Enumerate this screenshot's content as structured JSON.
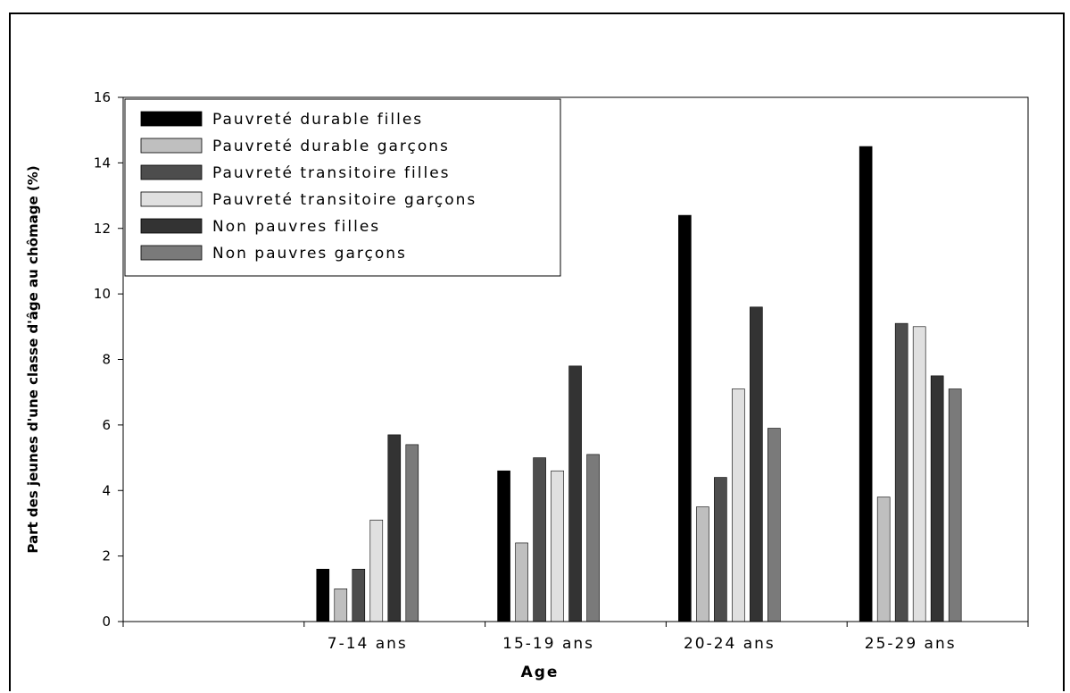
{
  "chart_data": {
    "type": "bar",
    "title": "",
    "xlabel": "Age",
    "ylabel": "Part des jeunes d'une classe d'âge au chômage (%)",
    "ylim": [
      0,
      16
    ],
    "yticks": [
      "0",
      "2",
      "4",
      "6",
      "8",
      "10",
      "12",
      "14",
      "16"
    ],
    "categories": [
      "7-14 ans",
      "15-19 ans",
      "20-24 ans",
      "25-29 ans"
    ],
    "legend_position": "top-left",
    "grid": false,
    "series": [
      {
        "name": "Pauvreté durable filles",
        "color": "#000000",
        "values": [
          1.6,
          4.6,
          12.4,
          14.5
        ]
      },
      {
        "name": "Pauvreté durable garçons",
        "color": "#bfbfbf",
        "values": [
          1.0,
          2.4,
          3.5,
          3.8
        ]
      },
      {
        "name": "Pauvreté transitoire filles",
        "color": "#4d4d4d",
        "values": [
          1.6,
          5.0,
          4.4,
          9.1
        ]
      },
      {
        "name": "Pauvreté transitoire garçons",
        "color": "#e0e0e0",
        "values": [
          3.1,
          4.6,
          7.1,
          9.0
        ]
      },
      {
        "name": "Non pauvres filles",
        "color": "#333333",
        "values": [
          5.7,
          7.8,
          9.6,
          7.5
        ]
      },
      {
        "name": "Non pauvres garçons",
        "color": "#7a7a7a",
        "values": [
          5.4,
          5.1,
          5.9,
          7.1
        ]
      }
    ]
  }
}
